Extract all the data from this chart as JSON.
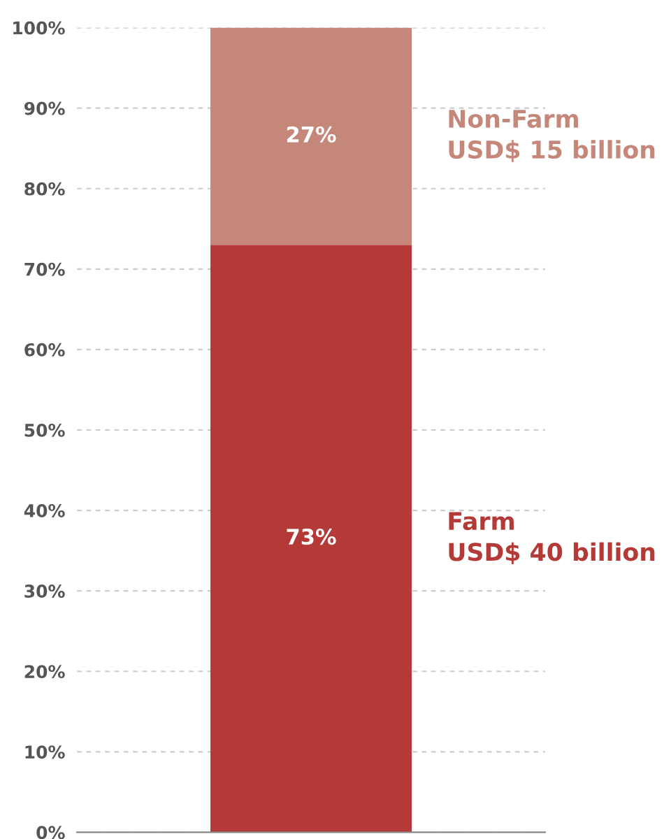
{
  "chart_data": {
    "type": "bar",
    "stacked": true,
    "categories": [
      null
    ],
    "series": [
      {
        "name": "Farm",
        "color": "#b33a36",
        "values": [
          73
        ],
        "value_labels": [
          "73%"
        ]
      },
      {
        "name": "Non-Farm",
        "color": "#c4877a",
        "values": [
          27
        ],
        "value_labels": [
          "27%"
        ]
      }
    ],
    "annotations": [
      "USD$ 40 billion",
      "USD$ 15 billion"
    ],
    "ylim": [
      0,
      100
    ],
    "yticks": [
      {
        "value": 0,
        "label": "0%"
      },
      {
        "value": 10,
        "label": "10%"
      },
      {
        "value": 20,
        "label": "20%"
      },
      {
        "value": 30,
        "label": "30%"
      },
      {
        "value": 40,
        "label": "40%"
      },
      {
        "value": 50,
        "label": "50%"
      },
      {
        "value": 60,
        "label": "60%"
      },
      {
        "value": 70,
        "label": "70%"
      },
      {
        "value": 80,
        "label": "80%"
      },
      {
        "value": 90,
        "label": "90%"
      },
      {
        "value": 100,
        "label": "100%"
      }
    ],
    "grid": "y",
    "legend": false
  }
}
